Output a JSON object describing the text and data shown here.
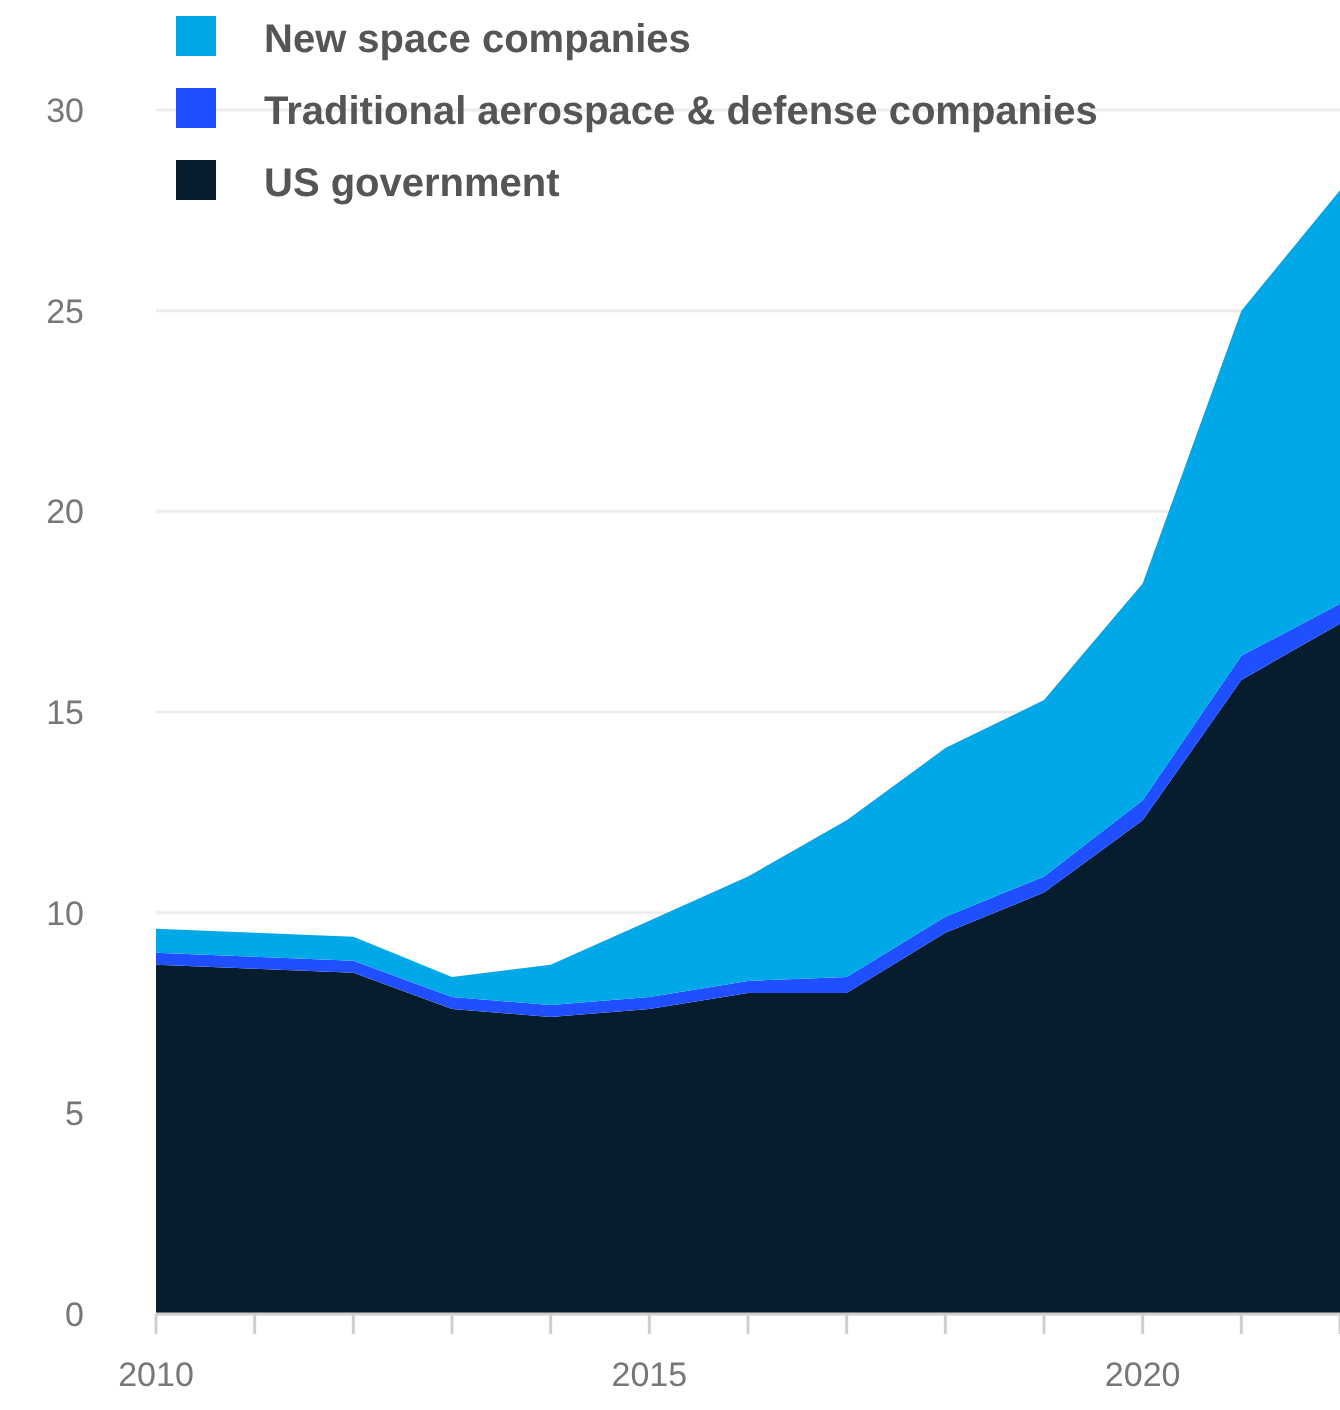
{
  "chart_data": {
    "type": "area",
    "stacked": true,
    "x": [
      2010,
      2011,
      2012,
      2013,
      2014,
      2015,
      2016,
      2017,
      2018,
      2019,
      2020,
      2021,
      2022
    ],
    "series": [
      {
        "name": "US government",
        "color": "#071c2c",
        "values": [
          8.7,
          8.6,
          8.5,
          7.6,
          7.4,
          7.6,
          8.0,
          8.0,
          9.5,
          10.5,
          12.3,
          15.8,
          17.2
        ]
      },
      {
        "name": "Traditional aerospace & defense companies",
        "color": "#1f4fff",
        "values": [
          0.3,
          0.3,
          0.3,
          0.3,
          0.3,
          0.3,
          0.3,
          0.4,
          0.4,
          0.4,
          0.5,
          0.6,
          0.5
        ]
      },
      {
        "name": "New space companies",
        "color": "#00a8e8",
        "values": [
          0.6,
          0.6,
          0.6,
          0.5,
          1.0,
          1.9,
          2.6,
          3.9,
          4.2,
          4.4,
          5.4,
          8.6,
          10.3
        ]
      }
    ],
    "xlim": [
      2010,
      2022
    ],
    "xticks": [
      2010,
      {
        "value": 2011,
        "label": null
      },
      {
        "value": 2012,
        "label": null
      },
      {
        "value": 2013,
        "label": null
      },
      {
        "value": 2014,
        "label": null
      },
      2015,
      {
        "value": 2016,
        "label": null
      },
      {
        "value": 2017,
        "label": null
      },
      {
        "value": 2018,
        "label": null
      },
      {
        "value": 2019,
        "label": null
      },
      2020,
      {
        "value": 2021,
        "label": null
      },
      {
        "value": 2022,
        "label": null
      }
    ],
    "ylim": [
      0,
      30
    ],
    "yticks": [
      0,
      5,
      10,
      15,
      20,
      25,
      30
    ],
    "grid": "y",
    "legend": "top left"
  }
}
